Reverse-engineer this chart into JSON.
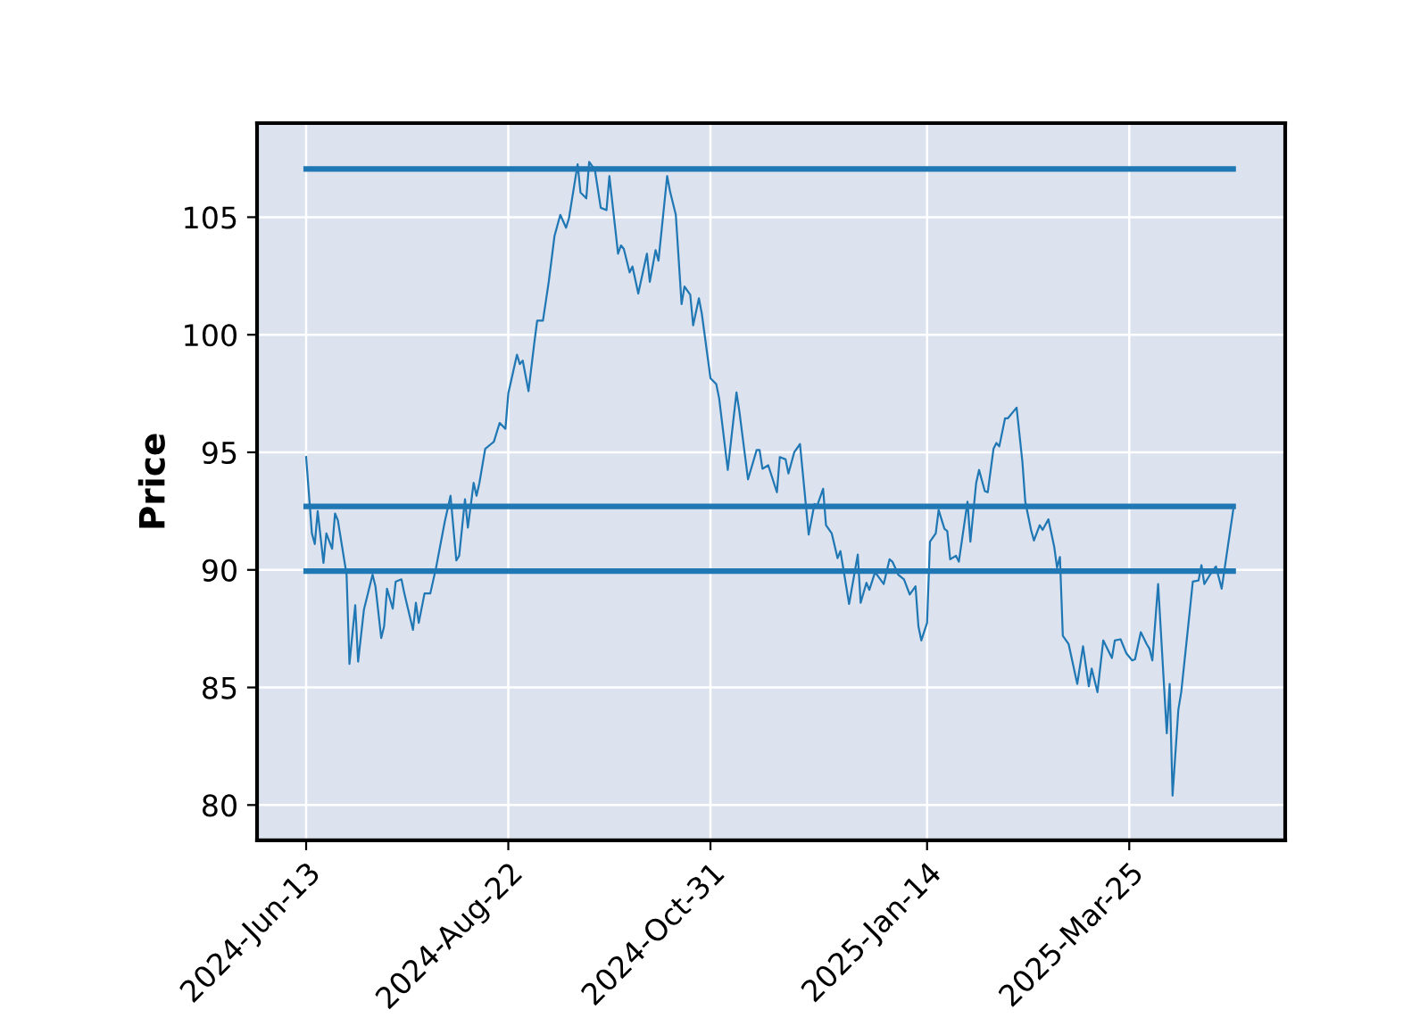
{
  "chart_data": {
    "type": "line",
    "ylabel": "Price",
    "xlim": [
      "2024-05-27",
      "2025-05-18"
    ],
    "ylim": [
      78.5,
      109.0
    ],
    "xticks": [
      {
        "value": "2024-06-13",
        "label": "2024-Jun-13"
      },
      {
        "value": "2024-08-22",
        "label": "2024-Aug-22"
      },
      {
        "value": "2024-10-31",
        "label": "2024-Oct-31"
      },
      {
        "value": "2025-01-14",
        "label": "2025-Jan-14"
      },
      {
        "value": "2025-03-25",
        "label": "2025-Mar-25"
      }
    ],
    "yticks": [
      80,
      85,
      90,
      95,
      100,
      105
    ],
    "grid": true,
    "marker": "none",
    "line_style": "solid",
    "series": [
      {
        "color": "#1f77b4",
        "x": [
          "2024-06-13",
          "2024-06-15",
          "2024-06-16",
          "2024-06-17",
          "2024-06-19",
          "2024-06-20",
          "2024-06-22",
          "2024-06-23",
          "2024-06-24",
          "2024-06-27",
          "2024-06-28",
          "2024-06-30",
          "2024-07-01",
          "2024-07-03",
          "2024-07-06",
          "2024-07-07",
          "2024-07-09",
          "2024-07-10",
          "2024-07-11",
          "2024-07-13",
          "2024-07-14",
          "2024-07-16",
          "2024-07-17",
          "2024-07-20",
          "2024-07-21",
          "2024-07-22",
          "2024-07-24",
          "2024-07-26",
          "2024-07-28",
          "2024-07-31",
          "2024-08-02",
          "2024-08-04",
          "2024-08-05",
          "2024-08-07",
          "2024-08-08",
          "2024-08-10",
          "2024-08-11",
          "2024-08-12",
          "2024-08-14",
          "2024-08-16",
          "2024-08-17",
          "2024-08-19",
          "2024-08-21",
          "2024-08-22",
          "2024-08-25",
          "2024-08-26",
          "2024-08-27",
          "2024-08-29",
          "2024-08-31",
          "2024-09-01",
          "2024-09-03",
          "2024-09-05",
          "2024-09-07",
          "2024-09-09",
          "2024-09-11",
          "2024-09-12",
          "2024-09-15",
          "2024-09-16",
          "2024-09-18",
          "2024-09-19",
          "2024-09-21",
          "2024-09-23",
          "2024-09-25",
          "2024-09-26",
          "2024-09-29",
          "2024-09-30",
          "2024-10-01",
          "2024-10-03",
          "2024-10-04",
          "2024-10-06",
          "2024-10-09",
          "2024-10-10",
          "2024-10-12",
          "2024-10-13",
          "2024-10-16",
          "2024-10-17",
          "2024-10-19",
          "2024-10-21",
          "2024-10-22",
          "2024-10-24",
          "2024-10-25",
          "2024-10-27",
          "2024-10-28",
          "2024-10-31",
          "2024-11-02",
          "2024-11-03",
          "2024-11-06",
          "2024-11-09",
          "2024-11-10",
          "2024-11-13",
          "2024-11-16",
          "2024-11-17",
          "2024-11-18",
          "2024-11-20",
          "2024-11-23",
          "2024-11-24",
          "2024-11-26",
          "2024-11-27",
          "2024-11-29",
          "2024-12-01",
          "2024-12-03",
          "2024-12-04",
          "2024-12-06",
          "2024-12-07",
          "2024-12-09",
          "2024-12-10",
          "2024-12-12",
          "2024-12-14",
          "2024-12-15",
          "2024-12-18",
          "2024-12-21",
          "2024-12-22",
          "2024-12-24",
          "2024-12-25",
          "2024-12-27",
          "2024-12-30",
          "2025-01-01",
          "2025-01-02",
          "2025-01-04",
          "2025-01-06",
          "2025-01-08",
          "2025-01-10",
          "2025-01-11",
          "2025-01-12",
          "2025-01-14",
          "2025-01-15",
          "2025-01-17",
          "2025-01-18",
          "2025-01-20",
          "2025-01-21",
          "2025-01-22",
          "2025-01-24",
          "2025-01-25",
          "2025-01-28",
          "2025-01-29",
          "2025-01-31",
          "2025-02-01",
          "2025-02-03",
          "2025-02-04",
          "2025-02-06",
          "2025-02-07",
          "2025-02-08",
          "2025-02-10",
          "2025-02-11",
          "2025-02-14",
          "2025-02-16",
          "2025-02-17",
          "2025-02-19",
          "2025-02-20",
          "2025-02-22",
          "2025-02-23",
          "2025-02-25",
          "2025-02-27",
          "2025-02-28",
          "2025-03-01",
          "2025-03-02",
          "2025-03-04",
          "2025-03-07",
          "2025-03-09",
          "2025-03-11",
          "2025-03-12",
          "2025-03-14",
          "2025-03-16",
          "2025-03-19",
          "2025-03-20",
          "2025-03-22",
          "2025-03-24",
          "2025-03-26",
          "2025-03-27",
          "2025-03-29",
          "2025-03-31",
          "2025-04-01",
          "2025-04-02",
          "2025-04-04",
          "2025-04-07",
          "2025-04-08",
          "2025-04-09",
          "2025-04-11",
          "2025-04-12",
          "2025-04-15",
          "2025-04-16",
          "2025-04-18",
          "2025-04-19",
          "2025-04-20",
          "2025-04-22",
          "2025-04-24",
          "2025-04-26",
          "2025-04-30"
        ],
        "values": [
          94.8,
          91.55,
          91.1,
          92.5,
          90.3,
          91.55,
          90.9,
          92.4,
          92.1,
          89.8,
          86.0,
          88.5,
          86.1,
          88.3,
          89.8,
          89.3,
          87.1,
          87.6,
          89.2,
          88.35,
          89.5,
          89.6,
          89.0,
          87.45,
          88.6,
          87.75,
          89.0,
          89.0,
          90.1,
          92.05,
          93.15,
          90.4,
          90.6,
          93.0,
          91.8,
          93.7,
          93.15,
          93.7,
          95.15,
          95.35,
          95.45,
          96.25,
          96.0,
          97.5,
          99.15,
          98.75,
          98.9,
          97.6,
          99.65,
          100.6,
          100.6,
          102.25,
          104.2,
          105.1,
          104.55,
          104.95,
          107.25,
          106.05,
          105.8,
          107.35,
          107.0,
          105.4,
          105.3,
          106.75,
          103.45,
          103.8,
          103.65,
          102.65,
          102.9,
          101.75,
          103.45,
          102.25,
          103.6,
          103.15,
          106.75,
          106.1,
          105.1,
          101.3,
          102.05,
          101.7,
          100.4,
          101.55,
          100.9,
          98.15,
          97.9,
          97.3,
          94.25,
          97.55,
          96.75,
          93.85,
          95.1,
          95.1,
          94.3,
          94.45,
          93.3,
          94.8,
          94.7,
          94.1,
          95.0,
          95.35,
          92.8,
          91.5,
          92.8,
          92.75,
          93.45,
          91.9,
          91.55,
          90.5,
          90.8,
          88.55,
          90.65,
          88.6,
          89.45,
          89.15,
          89.9,
          89.4,
          90.45,
          90.35,
          89.8,
          89.6,
          88.95,
          89.3,
          87.6,
          87.0,
          87.75,
          91.2,
          91.55,
          92.55,
          91.75,
          91.65,
          90.45,
          90.6,
          90.35,
          92.9,
          91.2,
          93.7,
          94.25,
          93.35,
          93.3,
          95.15,
          95.4,
          95.25,
          96.45,
          96.45,
          96.9,
          94.6,
          92.9,
          91.7,
          91.25,
          91.9,
          91.7,
          92.15,
          91.0,
          90.1,
          90.55,
          87.2,
          86.85,
          85.15,
          86.75,
          85.05,
          85.8,
          84.8,
          87.0,
          86.25,
          87.0,
          87.05,
          86.45,
          86.15,
          86.2,
          87.35,
          86.85,
          86.65,
          86.15,
          89.4,
          83.05,
          85.15,
          80.4,
          84.05,
          84.8,
          88.3,
          89.5,
          89.55,
          90.2,
          89.4,
          89.8,
          90.15,
          89.2,
          92.55
        ]
      },
      {
        "color": "#1f77b4",
        "x": [
          "2024-06-13",
          "2025-04-30"
        ],
        "values": [
          107.05,
          107.05
        ]
      },
      {
        "color": "#1f77b4",
        "x": [
          "2024-06-13",
          "2025-04-30"
        ],
        "values": [
          92.7,
          92.7
        ]
      },
      {
        "color": "#1f77b4",
        "x": [
          "2024-06-13",
          "2025-04-30"
        ],
        "values": [
          89.95,
          89.95
        ]
      }
    ]
  }
}
